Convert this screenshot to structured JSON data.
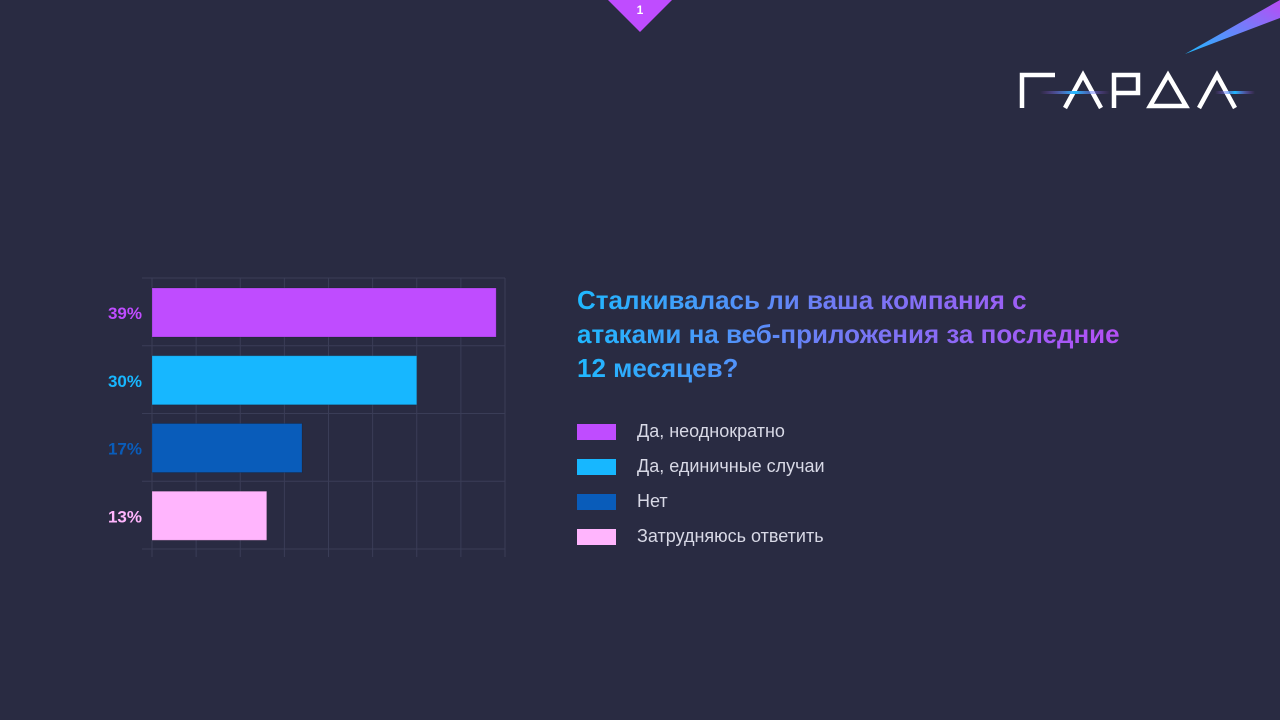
{
  "slide_number": "1",
  "logo_text": "ГАРДА",
  "colors": {
    "background": "#292b42",
    "accent": "#bf4cff"
  },
  "chart_data": {
    "type": "bar",
    "orientation": "horizontal",
    "title": "Сталкивалась ли ваша компания с атаками на веб-приложения за последние 12 месяцев?",
    "categories": [
      "Да, неоднократно",
      "Да, единичные случаи",
      "Нет",
      "Затрудняюсь ответить"
    ],
    "values": [
      39,
      30,
      17,
      13
    ],
    "labels": [
      "39%",
      "30%",
      "17%",
      "13%"
    ],
    "colors": [
      "#bf4cff",
      "#17b7ff",
      "#095cba",
      "#ffb5fd"
    ],
    "xlim": [
      0,
      40
    ],
    "grid": true,
    "legend_position": "right",
    "xlabel": "",
    "ylabel": ""
  }
}
